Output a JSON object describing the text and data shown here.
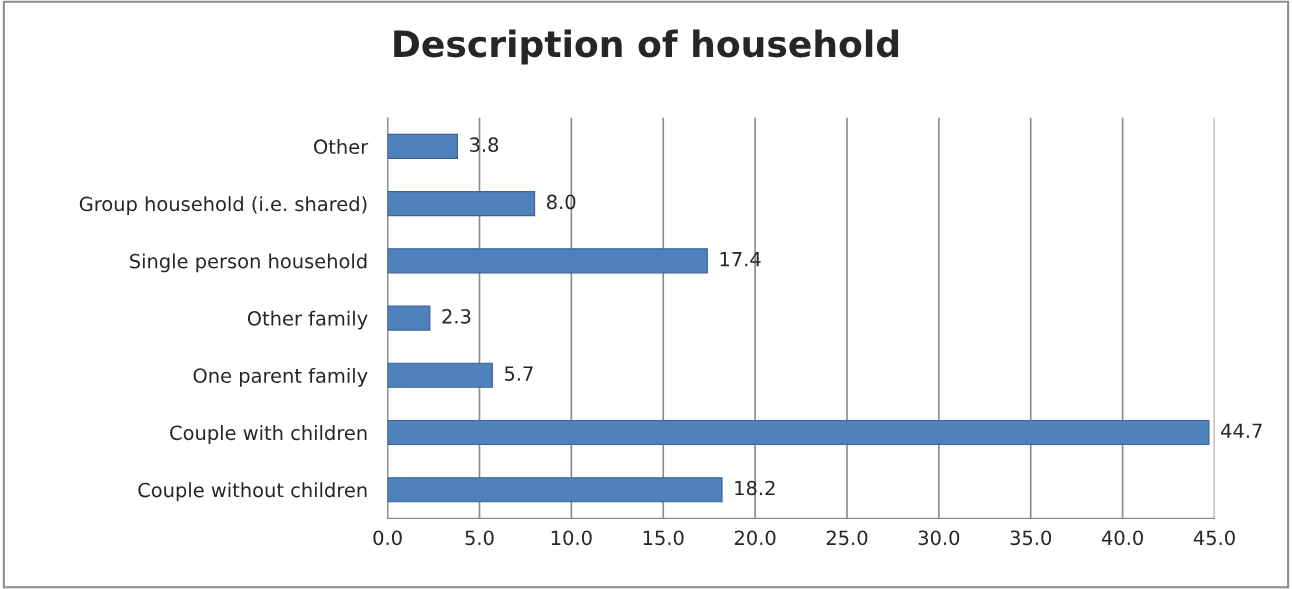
{
  "chart_data": {
    "type": "bar",
    "orientation": "horizontal",
    "title": "Description of household",
    "categories": [
      "Other",
      "Group household (i.e. shared)",
      "Single person household",
      "Other family",
      "One parent family",
      "Couple with children",
      "Couple without children"
    ],
    "values": [
      3.8,
      8.0,
      17.4,
      2.3,
      5.7,
      44.7,
      18.2
    ],
    "value_labels": [
      "3.8",
      "8.0",
      "17.4",
      "2.3",
      "5.7",
      "44.7",
      "18.2"
    ],
    "color": "#4f81bd",
    "xlim": [
      0,
      45
    ],
    "xticks": [
      {
        "value": 0,
        "label": "0.0"
      },
      {
        "value": 5,
        "label": "5.0"
      },
      {
        "value": 10,
        "label": "10.0"
      },
      {
        "value": 15,
        "label": "15.0"
      },
      {
        "value": 20,
        "label": "20.0"
      },
      {
        "value": 25,
        "label": "25.0"
      },
      {
        "value": 30,
        "label": "30.0"
      },
      {
        "value": 35,
        "label": "35.0"
      },
      {
        "value": 40,
        "label": "40.0"
      },
      {
        "value": 45,
        "label": "45.0"
      }
    ],
    "grid": "x"
  }
}
